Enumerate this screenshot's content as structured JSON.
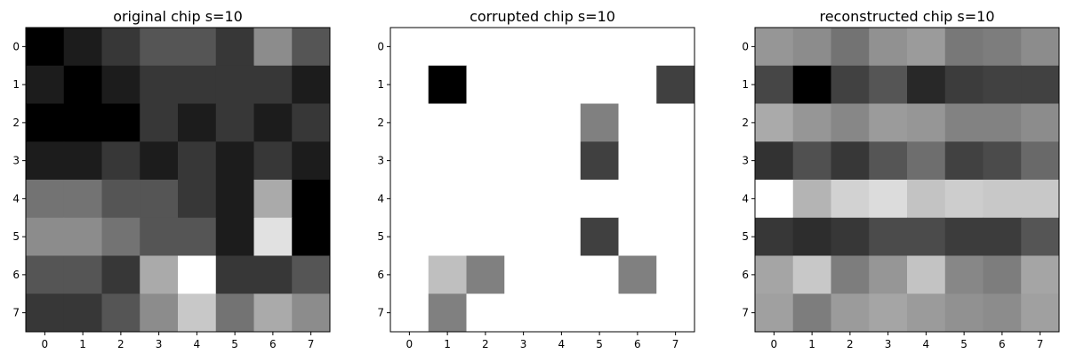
{
  "figure": {
    "background": "#ffffff",
    "cmap": "gray"
  },
  "chart_data": [
    {
      "type": "heatmap",
      "title": "original chip s=10",
      "xticks": [
        "0",
        "1",
        "2",
        "3",
        "4",
        "5",
        "6",
        "7"
      ],
      "yticks": [
        "0",
        "1",
        "2",
        "3",
        "4",
        "5",
        "6",
        "7"
      ],
      "grid": false,
      "values": [
        [
          0,
          28,
          55,
          85,
          85,
          55,
          140,
          85
        ],
        [
          28,
          0,
          28,
          55,
          55,
          55,
          55,
          28
        ],
        [
          0,
          0,
          0,
          55,
          28,
          55,
          28,
          55
        ],
        [
          28,
          28,
          55,
          28,
          55,
          28,
          55,
          28
        ],
        [
          115,
          115,
          85,
          85,
          55,
          28,
          170,
          0
        ],
        [
          140,
          140,
          115,
          85,
          85,
          28,
          225,
          0
        ],
        [
          85,
          85,
          55,
          170,
          255,
          55,
          55,
          85
        ],
        [
          55,
          55,
          85,
          140,
          200,
          115,
          170,
          140
        ]
      ]
    },
    {
      "type": "heatmap",
      "title": "corrupted chip s=10",
      "xticks": [
        "0",
        "1",
        "2",
        "3",
        "4",
        "5",
        "6",
        "7"
      ],
      "yticks": [
        "0",
        "1",
        "2",
        "3",
        "4",
        "5",
        "6",
        "7"
      ],
      "grid": false,
      "values": [
        [
          255,
          255,
          255,
          255,
          255,
          255,
          255,
          255
        ],
        [
          255,
          0,
          255,
          255,
          255,
          255,
          255,
          64
        ],
        [
          255,
          255,
          255,
          255,
          255,
          128,
          255,
          255
        ],
        [
          255,
          255,
          255,
          255,
          255,
          64,
          255,
          255
        ],
        [
          255,
          255,
          255,
          255,
          255,
          255,
          255,
          255
        ],
        [
          255,
          255,
          255,
          255,
          255,
          64,
          255,
          255
        ],
        [
          255,
          191,
          128,
          255,
          255,
          255,
          128,
          255
        ],
        [
          255,
          128,
          255,
          255,
          255,
          255,
          255,
          255
        ]
      ]
    },
    {
      "type": "heatmap",
      "title": "reconstructed chip s=10",
      "xticks": [
        "0",
        "1",
        "2",
        "3",
        "4",
        "5",
        "6",
        "7"
      ],
      "yticks": [
        "0",
        "1",
        "2",
        "3",
        "4",
        "5",
        "6",
        "7"
      ],
      "grid": false,
      "values": [
        [
          150,
          140,
          115,
          145,
          155,
          120,
          125,
          140
        ],
        [
          70,
          0,
          65,
          85,
          40,
          60,
          65,
          65
        ],
        [
          170,
          150,
          135,
          155,
          150,
          130,
          130,
          140
        ],
        [
          50,
          80,
          55,
          85,
          110,
          65,
          75,
          105
        ],
        [
          255,
          180,
          210,
          220,
          195,
          205,
          200,
          200
        ],
        [
          55,
          45,
          55,
          75,
          75,
          60,
          60,
          85
        ],
        [
          165,
          200,
          125,
          150,
          195,
          135,
          125,
          165
        ],
        [
          160,
          125,
          155,
          165,
          155,
          145,
          140,
          160
        ]
      ]
    }
  ]
}
